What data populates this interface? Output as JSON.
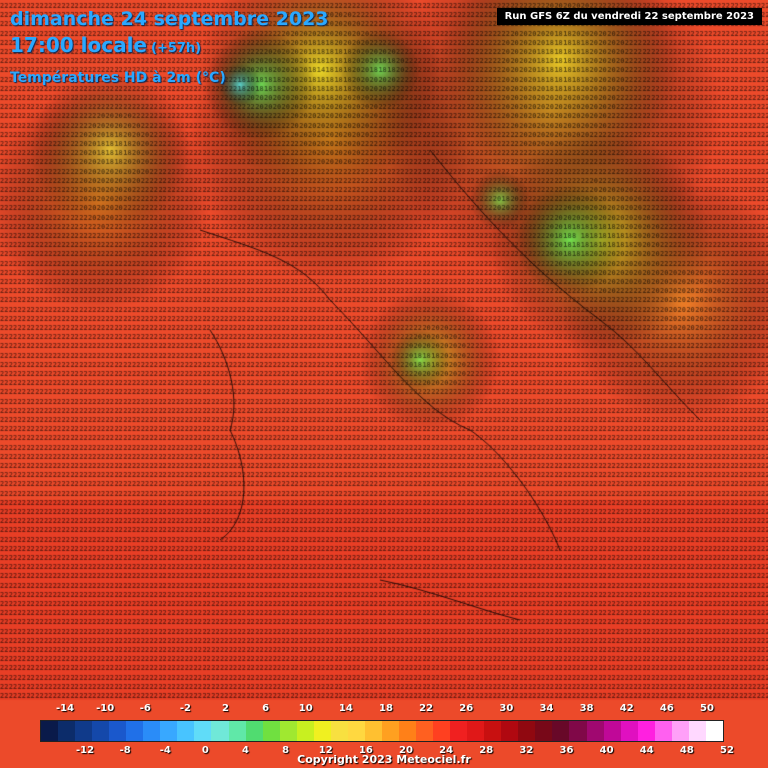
{
  "header": {
    "date": "dimanche 24 septembre 2023",
    "time": "17:00 locale",
    "offset": "(+57h)",
    "parameter": "Températures HD à 2m (°C)"
  },
  "run_info": "Run GFS 6Z du vendredi 22 septembre 2023",
  "legend": {
    "top_labels": [
      "-14",
      "-10",
      "-6",
      "-2",
      "2",
      "6",
      "10",
      "14",
      "18",
      "22",
      "26",
      "30",
      "34",
      "38",
      "42",
      "46",
      "50"
    ],
    "bottom_labels": [
      "-12",
      "-8",
      "-4",
      "0",
      "4",
      "8",
      "12",
      "16",
      "20",
      "24",
      "28",
      "32",
      "36",
      "40",
      "44",
      "48",
      "52"
    ],
    "colors": [
      "#0a1a4a",
      "#0c2c6a",
      "#103a8a",
      "#1448aa",
      "#1a58cc",
      "#2070e8",
      "#2a8cf8",
      "#38a8ff",
      "#48c4ff",
      "#60dcf8",
      "#70e8d8",
      "#60e8a8",
      "#50dc70",
      "#70e040",
      "#a0e830",
      "#c8f020",
      "#f0f020",
      "#f8e040",
      "#ffd840",
      "#ffc030",
      "#ffa020",
      "#ff8018",
      "#ff6020",
      "#ff4020",
      "#f02020",
      "#e01818",
      "#c81010",
      "#b00810",
      "#900810",
      "#780818",
      "#680828",
      "#800848",
      "#a00870",
      "#c00898",
      "#e010c0",
      "#ff20e0",
      "#ff60f0",
      "#ffa0f8",
      "#ffd8ff",
      "#ffffff"
    ]
  },
  "copyright": "Copyright 2023 Meteociel.fr"
}
